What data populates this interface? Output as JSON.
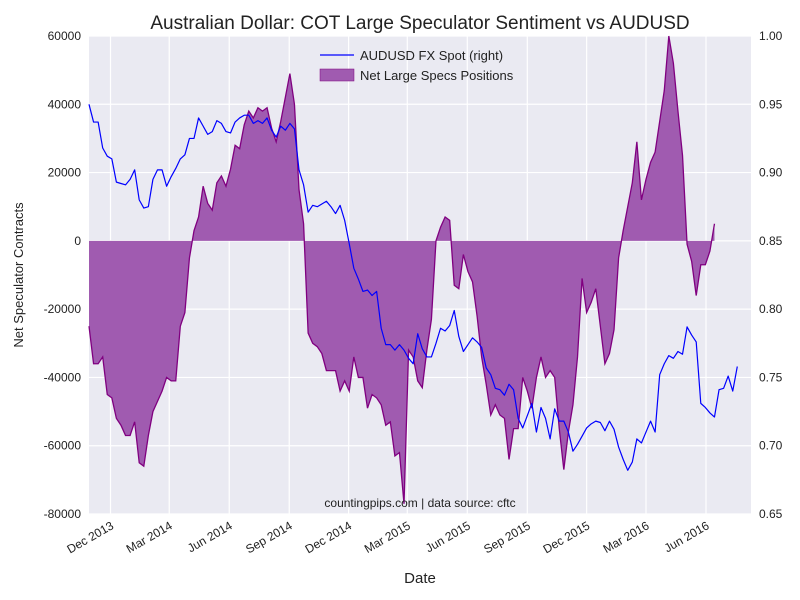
{
  "chart_data": {
    "type": "line",
    "title": "Australian Dollar: COT Large Speculator Sentiment vs AUDUSD",
    "xlabel": "Date",
    "ylabel": "Net Speculator Contracts",
    "y2label": "",
    "annotation": "countingpips.com | data source: cftc",
    "ylim": [
      -80000,
      60000
    ],
    "y2lim": [
      0.65,
      1.0
    ],
    "grid": true,
    "legend_position": "top-center",
    "x_range": [
      "2013-10-29",
      "2016-08-09"
    ],
    "x_ticks": [
      {
        "date": "2013-12-01",
        "label": "Dec 2013"
      },
      {
        "date": "2014-03-01",
        "label": "Mar 2014"
      },
      {
        "date": "2014-06-01",
        "label": "Jun 2014"
      },
      {
        "date": "2014-09-01",
        "label": "Sep 2014"
      },
      {
        "date": "2014-12-01",
        "label": "Dec 2014"
      },
      {
        "date": "2015-03-01",
        "label": "Mar 2015"
      },
      {
        "date": "2015-06-01",
        "label": "Jun 2015"
      },
      {
        "date": "2015-09-01",
        "label": "Sep 2015"
      },
      {
        "date": "2015-12-01",
        "label": "Dec 2015"
      },
      {
        "date": "2016-03-01",
        "label": "Mar 2016"
      },
      {
        "date": "2016-06-01",
        "label": "Jun 2016"
      }
    ],
    "y_ticks": [
      "60000",
      "40000",
      "20000",
      "0",
      "-20000",
      "-40000",
      "-60000",
      "-80000"
    ],
    "y2_ticks": [
      "1.00",
      "0.95",
      "0.90",
      "0.85",
      "0.80",
      "0.75",
      "0.70",
      "0.65"
    ],
    "colors": {
      "fx_line": "#0000ff",
      "area_fill": "#a05bb0",
      "area_edge": "#800080",
      "plot_background": "#eaeaf2",
      "grid": "#ffffff"
    },
    "series": [
      {
        "name": "Net Large Specs Positions",
        "axis": "left",
        "style": "area",
        "start_date": "2013-10-29",
        "step_days": 7,
        "values": [
          -25000,
          -36000,
          -36000,
          -34000,
          -45000,
          -46000,
          -52000,
          -54000,
          -57000,
          -57000,
          -53000,
          -65000,
          -66000,
          -57000,
          -50000,
          -47000,
          -44000,
          -40000,
          -41000,
          -41000,
          -25000,
          -21000,
          -5000,
          3000,
          7000,
          16000,
          11000,
          9000,
          17000,
          19000,
          16000,
          21000,
          28000,
          27000,
          34000,
          38000,
          36000,
          39000,
          38000,
          39000,
          33000,
          29000,
          35000,
          42000,
          49000,
          40000,
          15000,
          5000,
          -27000,
          -30000,
          -31000,
          -33000,
          -38000,
          -38000,
          -38000,
          -44000,
          -41000,
          -44000,
          -34000,
          -40000,
          -40000,
          -49000,
          -45000,
          -46000,
          -48000,
          -54000,
          -53000,
          -63000,
          -62000,
          -77000,
          -32000,
          -34000,
          -41000,
          -43000,
          -32000,
          -23000,
          0,
          4000,
          7000,
          6000,
          -13000,
          -14000,
          -4000,
          -9000,
          -12000,
          -22000,
          -34000,
          -42000,
          -51000,
          -48000,
          -51000,
          -52000,
          -64000,
          -55000,
          -55000,
          -40000,
          -44000,
          -49000,
          -40000,
          -34000,
          -40000,
          -38000,
          -40000,
          -55000,
          -67000,
          -56000,
          -48000,
          -34000,
          -11000,
          -21000,
          -18000,
          -14000,
          -25000,
          -36000,
          -33000,
          -26000,
          -5000,
          3000,
          10000,
          17000,
          29000,
          12000,
          18000,
          23000,
          26000,
          35000,
          44000,
          60000,
          52000,
          38000,
          25000,
          -1000,
          -6000,
          -16000,
          -7000,
          -7000,
          -3000,
          5000
        ]
      },
      {
        "name": "AUDUSD FX Spot (right)",
        "axis": "right",
        "style": "line",
        "start_date": "2013-10-29",
        "step_days": 7,
        "values": [
          0.95,
          0.937,
          0.937,
          0.918,
          0.912,
          0.91,
          0.893,
          0.892,
          0.891,
          0.895,
          0.902,
          0.88,
          0.874,
          0.875,
          0.895,
          0.902,
          0.902,
          0.89,
          0.897,
          0.903,
          0.91,
          0.913,
          0.925,
          0.925,
          0.94,
          0.934,
          0.928,
          0.93,
          0.938,
          0.936,
          0.93,
          0.929,
          0.937,
          0.94,
          0.942,
          0.942,
          0.936,
          0.938,
          0.936,
          0.94,
          0.931,
          0.926,
          0.934,
          0.931,
          0.936,
          0.932,
          0.902,
          0.891,
          0.871,
          0.876,
          0.875,
          0.877,
          0.879,
          0.875,
          0.87,
          0.876,
          0.865,
          0.848,
          0.83,
          0.822,
          0.813,
          0.814,
          0.81,
          0.813,
          0.786,
          0.774,
          0.774,
          0.77,
          0.774,
          0.77,
          0.764,
          0.76,
          0.782,
          0.771,
          0.765,
          0.765,
          0.775,
          0.786,
          0.784,
          0.788,
          0.799,
          0.78,
          0.769,
          0.774,
          0.779,
          0.776,
          0.772,
          0.757,
          0.752,
          0.742,
          0.741,
          0.737,
          0.745,
          0.741,
          0.72,
          0.713,
          0.722,
          0.731,
          0.71,
          0.728,
          0.72,
          0.705,
          0.727,
          0.718,
          0.718,
          0.71,
          0.696,
          0.701,
          0.707,
          0.713,
          0.716,
          0.718,
          0.717,
          0.711,
          0.718,
          0.712,
          0.699,
          0.69,
          0.682,
          0.688,
          0.705,
          0.702,
          0.71,
          0.718,
          0.71,
          0.752,
          0.76,
          0.766,
          0.764,
          0.769,
          0.767,
          0.787,
          0.781,
          0.776,
          0.731,
          0.728,
          0.724,
          0.721,
          0.741,
          0.742,
          0.751,
          0.74,
          0.758
        ]
      }
    ]
  }
}
